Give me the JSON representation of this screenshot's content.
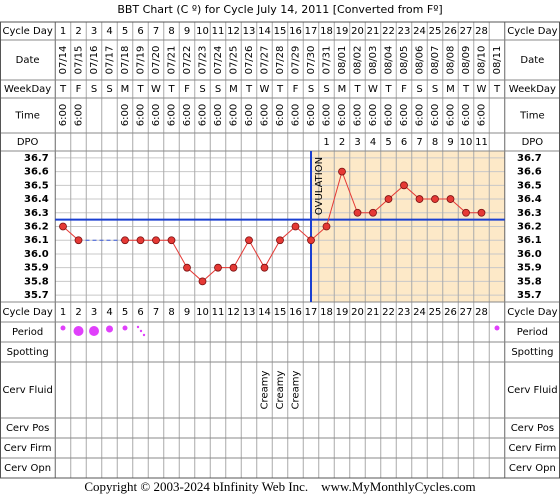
{
  "chart_data": {
    "type": "line",
    "title": "BBT Chart (C º) for Cycle July 14, 2011  [Converted from Fº]",
    "row_labels": {
      "cycle_day": "Cycle Day",
      "date": "Date",
      "weekday": "WeekDay",
      "time": "Time",
      "dpo": "DPO",
      "period": "Period",
      "spotting": "Spotting",
      "cerv_fluid": "Cerv Fluid",
      "cerv_pos": "Cerv Pos",
      "cerv_firm": "Cerv Firm",
      "cerv_opn": "Cerv Opn"
    },
    "categories": [
      1,
      2,
      3,
      4,
      5,
      6,
      7,
      8,
      9,
      10,
      11,
      12,
      13,
      14,
      15,
      16,
      17,
      18,
      19,
      20,
      21,
      22,
      23,
      24,
      25,
      26,
      27,
      28,
      null
    ],
    "dates": [
      "07/14",
      "07/15",
      "07/16",
      "07/17",
      "07/18",
      "07/19",
      "07/20",
      "07/21",
      "07/22",
      "07/23",
      "07/24",
      "07/25",
      "07/26",
      "07/27",
      "07/28",
      "07/29",
      "07/30",
      "07/31",
      "08/01",
      "08/02",
      "08/03",
      "08/04",
      "08/05",
      "08/06",
      "08/07",
      "08/08",
      "08/09",
      "08/10",
      "08/11"
    ],
    "weekdays": [
      "T",
      "F",
      "S",
      "S",
      "M",
      "T",
      "W",
      "T",
      "F",
      "S",
      "S",
      "M",
      "T",
      "W",
      "T",
      "F",
      "S",
      "S",
      "M",
      "T",
      "W",
      "T",
      "F",
      "S",
      "S",
      "M",
      "T",
      "W",
      "T"
    ],
    "times": [
      "6:00",
      "6:00",
      null,
      null,
      "6:00",
      "6:00",
      "6:00",
      "6:00",
      "6:00",
      "6:00",
      "6:00",
      "6:00",
      "6:00",
      "6:00",
      "6:00",
      "6:00",
      "6:00",
      "6:00",
      "6:00",
      "6:00",
      "6:00",
      "6:00",
      "6:00",
      "6:00",
      "6:00",
      "6:00",
      "6:00",
      "6:00",
      null
    ],
    "dpo": [
      null,
      null,
      null,
      null,
      null,
      null,
      null,
      null,
      null,
      null,
      null,
      null,
      null,
      null,
      null,
      null,
      null,
      1,
      2,
      3,
      4,
      5,
      6,
      7,
      8,
      9,
      10,
      11,
      null
    ],
    "cerv_fluid": [
      null,
      null,
      null,
      null,
      null,
      null,
      null,
      null,
      null,
      null,
      null,
      null,
      null,
      "Creamy",
      "Creamy",
      "Creamy",
      null,
      null,
      null,
      null,
      null,
      null,
      null,
      null,
      null,
      null,
      null,
      null,
      null
    ],
    "series": [
      {
        "name": "BBT",
        "color": "#e53935",
        "values": [
          36.2,
          36.1,
          null,
          null,
          36.1,
          36.1,
          36.1,
          36.1,
          35.9,
          35.8,
          35.9,
          35.9,
          36.1,
          35.9,
          36.1,
          36.2,
          36.1,
          36.2,
          36.6,
          36.3,
          36.3,
          36.4,
          36.5,
          36.4,
          36.4,
          36.4,
          36.3,
          36.3,
          null
        ]
      }
    ],
    "coverline": 36.25,
    "ovulation": {
      "label": "OVULATION",
      "day": 17
    },
    "ylim": [
      35.65,
      36.75
    ],
    "yticks": [
      {
        "value": 36.7,
        "label": "36.7"
      },
      {
        "value": 36.6,
        "label": "36.6"
      },
      {
        "value": 36.5,
        "label": "36.5"
      },
      {
        "value": 36.4,
        "label": "36.4"
      },
      {
        "value": 36.3,
        "label": "36.3"
      },
      {
        "value": 36.2,
        "label": "36.2"
      },
      {
        "value": 36.1,
        "label": "36.1"
      },
      {
        "value": 36,
        "label": "36.0"
      },
      {
        "value": 35.9,
        "label": "35.9"
      },
      {
        "value": 35.8,
        "label": "35.8"
      },
      {
        "value": 35.7,
        "label": "35.7"
      }
    ],
    "grid": true,
    "footer": "Copyright © 2003-2024 bInfinity Web Inc.    www.MyMonthlyCycles.com"
  }
}
